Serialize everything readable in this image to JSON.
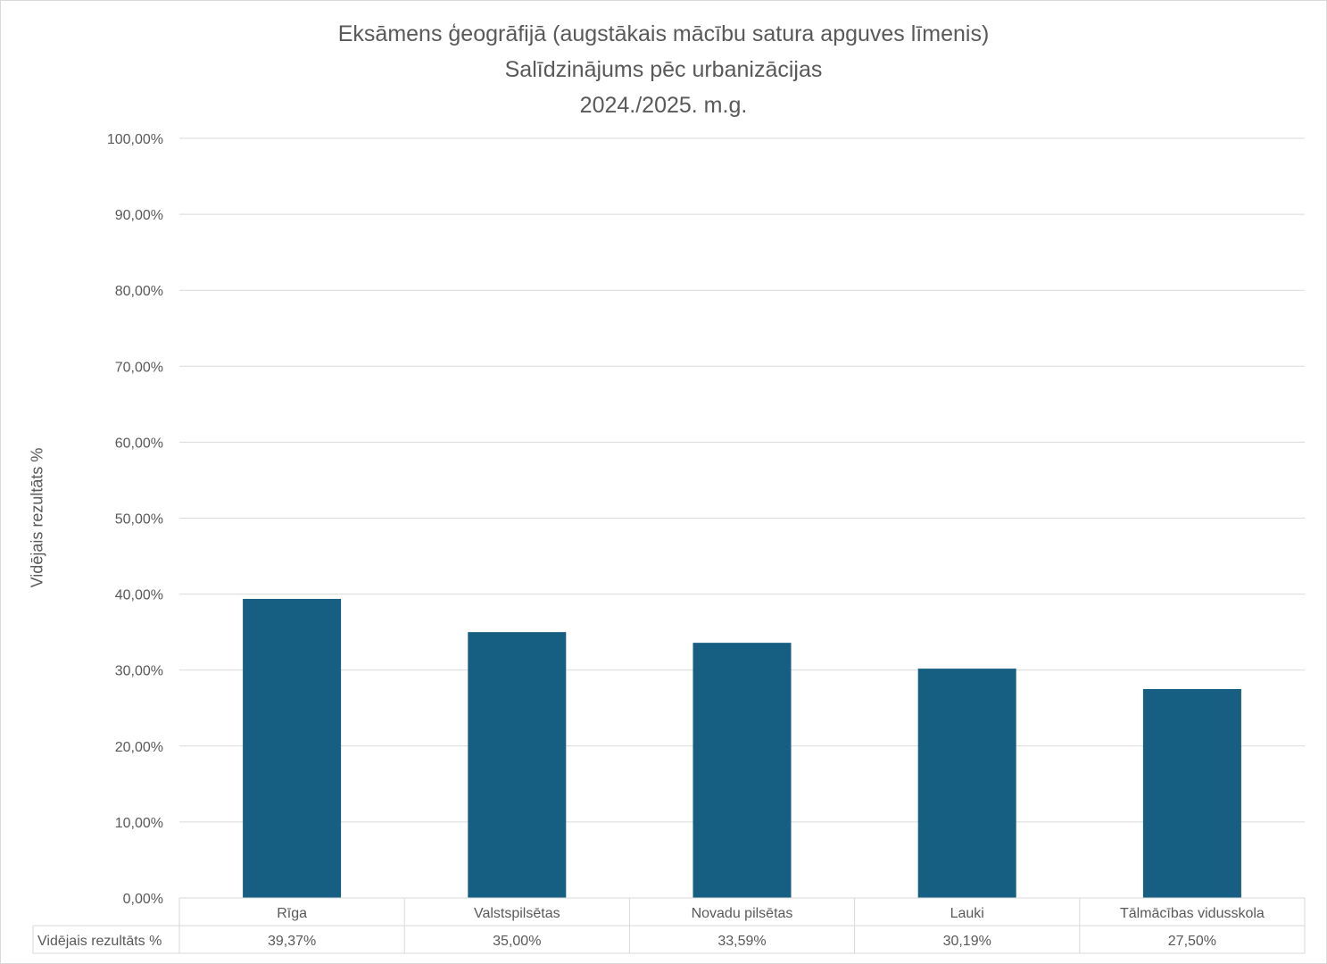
{
  "chart_data": {
    "type": "bar",
    "title_lines": [
      "Eksāmens ģeogrāfijā (augstākais mācību satura apguves līmenis)",
      "Salīdzinājums pēc urbanizācijas",
      "2024./2025. m.g."
    ],
    "ylabel": "Vidējais rezultāts %",
    "xlabel": "",
    "ylim": [
      0,
      100
    ],
    "y_ticks": [
      0,
      10,
      20,
      30,
      40,
      50,
      60,
      70,
      80,
      90,
      100
    ],
    "y_tick_labels": [
      "0,00%",
      "10,00%",
      "20,00%",
      "30,00%",
      "40,00%",
      "50,00%",
      "60,00%",
      "70,00%",
      "80,00%",
      "90,00%",
      "100,00%"
    ],
    "categories": [
      "Rīga",
      "Valstspilsētas",
      "Novadu pilsētas",
      "Lauki",
      "Tālmācības vidusskola"
    ],
    "series": [
      {
        "name": "Vidējais rezultāts %",
        "values": [
          39.37,
          35.0,
          33.59,
          30.19,
          27.5
        ],
        "value_labels": [
          "39,37%",
          "35,00%",
          "33,59%",
          "30,19%",
          "27,50%"
        ],
        "color": "#175f82"
      }
    ],
    "grid": true,
    "legend": "data-table"
  }
}
